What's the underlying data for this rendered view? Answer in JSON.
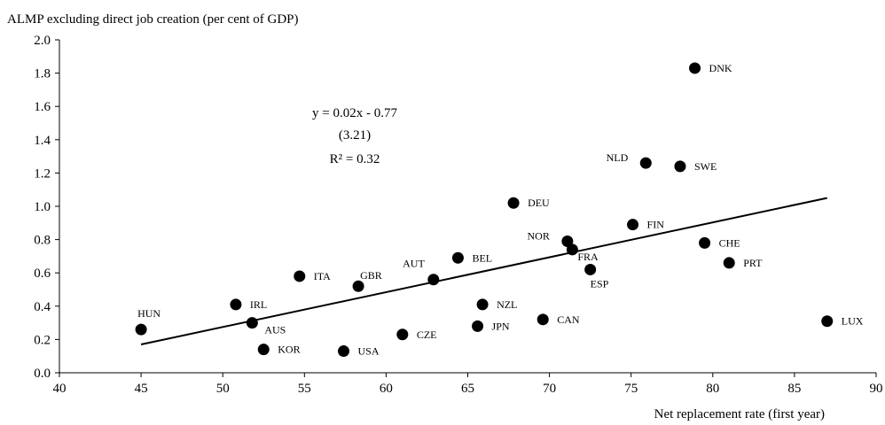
{
  "chart_data": {
    "type": "scatter",
    "y_label": "ALMP excluding direct job creation (per cent of GDP)",
    "x_label": "Net replacement rate (first year)",
    "annotations": [
      "y = 0.02x - 0.77",
      "(3.21)",
      "R² = 0.32"
    ],
    "color": "#000000",
    "xlim": [
      40,
      90
    ],
    "xticks": [
      40,
      45,
      50,
      55,
      60,
      65,
      70,
      75,
      80,
      85,
      90
    ],
    "ylim": [
      0,
      2
    ],
    "yticks": [
      {
        "value": 0,
        "label": "0.0"
      },
      {
        "value": 0.2,
        "label": "0.2"
      },
      {
        "value": 0.4,
        "label": "0.4"
      },
      {
        "value": 0.6,
        "label": "0.6"
      },
      {
        "value": 0.8,
        "label": "0.8"
      },
      {
        "value": 1,
        "label": "1.0"
      },
      {
        "value": 1.2,
        "label": "1.2"
      },
      {
        "value": 1.4,
        "label": "1.4"
      },
      {
        "value": 1.6,
        "label": "1.6"
      },
      {
        "value": 1.8,
        "label": "1.8"
      },
      {
        "value": 2,
        "label": "2.0"
      }
    ],
    "labels": [
      "HUN",
      "IRL",
      "AUS",
      "KOR",
      "ITA",
      "GBR",
      "USA",
      "AUT",
      "CZE",
      "BEL",
      "NZL",
      "JPN",
      "DEU",
      "CAN",
      "NOR",
      "FRA",
      "ESP",
      "FIN",
      "NLD",
      "SWE",
      "DNK",
      "CHE",
      "PRT",
      "LUX"
    ],
    "x": [
      45.0,
      50.8,
      51.8,
      52.5,
      54.7,
      58.3,
      57.4,
      62.9,
      61.0,
      64.4,
      65.9,
      65.6,
      67.8,
      69.6,
      71.1,
      71.4,
      72.5,
      75.1,
      75.9,
      78.0,
      78.9,
      79.5,
      81.0,
      87.0
    ],
    "values": [
      0.26,
      0.41,
      0.3,
      0.14,
      0.58,
      0.52,
      0.13,
      0.56,
      0.23,
      0.69,
      0.41,
      0.28,
      1.02,
      0.32,
      0.79,
      0.74,
      0.62,
      0.89,
      1.26,
      1.24,
      1.83,
      0.78,
      0.66,
      0.31
    ],
    "trendline": {
      "x": [
        45,
        87
      ],
      "values": [
        0.17,
        1.05
      ]
    }
  }
}
